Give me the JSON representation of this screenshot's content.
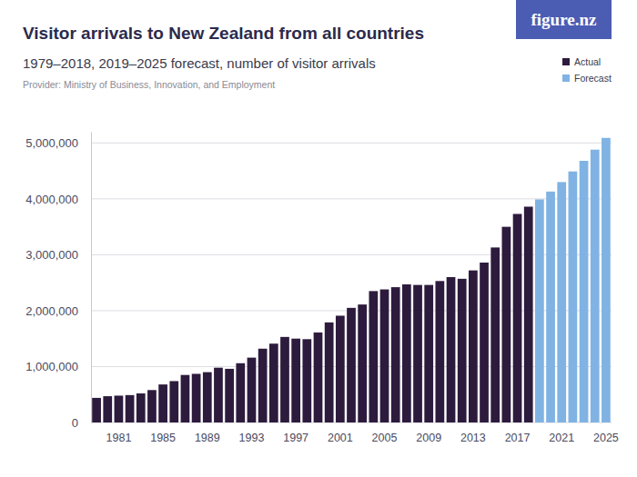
{
  "chart_data": {
    "type": "bar",
    "title": "Visitor arrivals to New Zealand from all countries",
    "subtitle": "1979–2018, 2019–2025 forecast, number of visitor arrivals",
    "source": "Provider: Ministry of Business, Innovation, and Employment",
    "brand": "figure.nz",
    "categories": [
      null,
      null,
      "1981",
      null,
      null,
      null,
      "1985",
      null,
      null,
      null,
      "1989",
      null,
      null,
      null,
      "1993",
      null,
      null,
      null,
      "1997",
      null,
      null,
      null,
      "2001",
      null,
      null,
      null,
      "2005",
      null,
      null,
      null,
      "2009",
      null,
      null,
      null,
      "2013",
      null,
      null,
      null,
      "2017",
      null,
      null,
      null,
      "2021",
      null,
      null,
      null,
      "2025"
    ],
    "series": [
      {
        "name": "Actual",
        "color": "#2d1b3d",
        "values": [
          440000,
          470000,
          480000,
          490000,
          520000,
          580000,
          680000,
          740000,
          850000,
          870000,
          900000,
          980000,
          960000,
          1060000,
          1160000,
          1320000,
          1410000,
          1530000,
          1500000,
          1490000,
          1610000,
          1790000,
          1910000,
          2050000,
          2110000,
          2350000,
          2380000,
          2420000,
          2470000,
          2460000,
          2460000,
          2530000,
          2600000,
          2570000,
          2720000,
          2860000,
          3130000,
          3500000,
          3730000,
          3860000,
          null,
          null,
          null,
          null,
          null,
          null,
          null
        ]
      },
      {
        "name": "Forecast",
        "color": "#80b3e3",
        "values": [
          null,
          null,
          null,
          null,
          null,
          null,
          null,
          null,
          null,
          null,
          null,
          null,
          null,
          null,
          null,
          null,
          null,
          null,
          null,
          null,
          null,
          null,
          null,
          null,
          null,
          null,
          null,
          null,
          null,
          null,
          null,
          null,
          null,
          null,
          null,
          null,
          null,
          null,
          null,
          null,
          3990000,
          4130000,
          4300000,
          4490000,
          4680000,
          4880000,
          5090000
        ]
      }
    ],
    "ylim": [
      0,
      5200000
    ],
    "yticks": [
      0,
      {
        "value": 1000000,
        "label": "1,000,000"
      },
      {
        "value": 2000000,
        "label": "2,000,000"
      },
      {
        "value": 3000000,
        "label": "3,000,000"
      },
      {
        "value": 4000000,
        "label": "4,000,000"
      },
      {
        "value": 5000000,
        "label": "5,000,000"
      }
    ],
    "grid": true,
    "legend": "top-right"
  }
}
